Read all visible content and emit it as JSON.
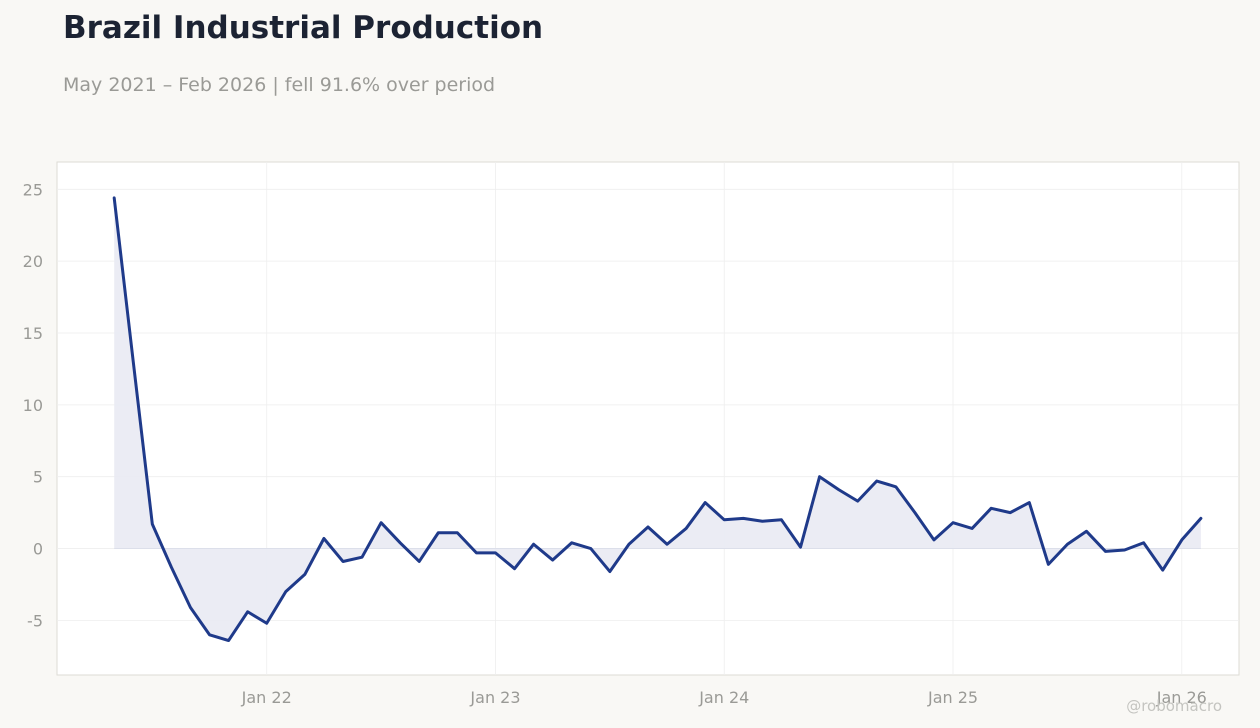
{
  "header": {
    "title": "Brazil Industrial Production",
    "subtitle": "May 2021 – Feb 2026 | fell 91.6% over period"
  },
  "watermark": "@robomacro",
  "colors": {
    "line": "#1f3a8a",
    "fill": "#e9eaf3",
    "grid": "#eeeeee",
    "plot_border": "#dddbd5",
    "background": "#f9f8f5",
    "plot_background": "#ffffff"
  },
  "chart_data": {
    "type": "area",
    "x_start": "2021-05",
    "x_frequency": "monthly",
    "x": [
      "2021-05",
      "2021-06",
      "2021-07",
      "2021-08",
      "2021-09",
      "2021-10",
      "2021-11",
      "2021-12",
      "2022-01",
      "2022-02",
      "2022-03",
      "2022-04",
      "2022-05",
      "2022-06",
      "2022-07",
      "2022-08",
      "2022-09",
      "2022-10",
      "2022-11",
      "2022-12",
      "2023-01",
      "2023-02",
      "2023-03",
      "2023-04",
      "2023-05",
      "2023-06",
      "2023-07",
      "2023-08",
      "2023-09",
      "2023-10",
      "2023-11",
      "2023-12",
      "2024-01",
      "2024-02",
      "2024-03",
      "2024-04",
      "2024-05",
      "2024-06",
      "2024-07",
      "2024-08",
      "2024-09",
      "2024-10",
      "2024-11",
      "2024-12",
      "2025-01",
      "2025-02",
      "2025-03",
      "2025-04",
      "2025-05",
      "2025-06",
      "2025-07",
      "2025-08",
      "2025-09",
      "2025-10",
      "2025-11",
      "2025-12",
      "2026-01",
      "2026-02"
    ],
    "values": [
      24.4,
      13.0,
      1.7,
      -1.3,
      -4.1,
      -6.0,
      -6.4,
      -4.4,
      -5.2,
      -3.0,
      -1.8,
      0.7,
      -0.9,
      -0.6,
      1.8,
      0.4,
      -0.9,
      1.1,
      1.1,
      -0.3,
      -0.3,
      -1.4,
      0.3,
      -0.8,
      0.4,
      0.0,
      -1.6,
      0.3,
      1.5,
      0.3,
      1.4,
      3.2,
      2.0,
      2.1,
      1.9,
      2.0,
      0.1,
      5.0,
      4.1,
      3.3,
      4.7,
      4.3,
      2.5,
      0.6,
      1.8,
      1.4,
      2.8,
      2.5,
      3.2,
      -1.1,
      0.3,
      1.2,
      -0.2,
      -0.1,
      0.4,
      -1.5,
      0.6,
      2.1
    ],
    "title": "Brazil Industrial Production",
    "subtitle": "May 2021 – Feb 2026 | fell 91.6% over period",
    "xlabel": "",
    "ylabel": "",
    "ylim": [
      -8.8,
      26.9
    ],
    "y_ticks": [
      -5,
      0,
      5,
      10,
      15,
      20,
      25
    ],
    "y_tick_labels": [
      "-5",
      "0",
      "5",
      "10",
      "15",
      "20",
      "25"
    ],
    "x_ticks": [
      "2022-01",
      "2023-01",
      "2024-01",
      "2025-01",
      "2026-01"
    ],
    "x_tick_labels": [
      "Jan 22",
      "Jan 23",
      "Jan 24",
      "Jan 25",
      "Jan 26"
    ],
    "xlim": [
      "2021-02",
      "2026-04"
    ],
    "grid": true,
    "legend": "none",
    "baseline": 0
  }
}
